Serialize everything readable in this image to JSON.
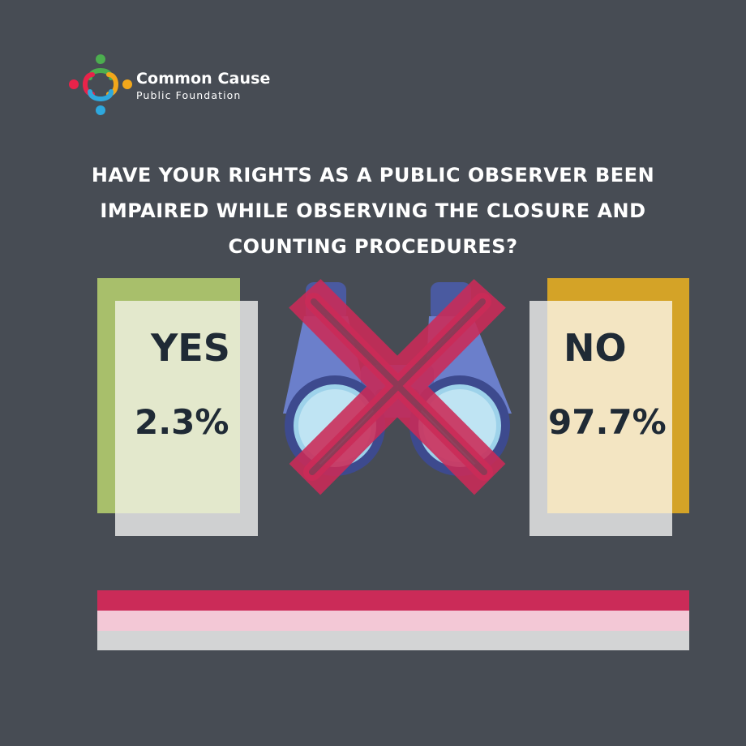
{
  "brand": {
    "name": "Common Cause",
    "subtitle": "Public Foundation",
    "logo_colors": [
      "#e8234a",
      "#4cae4f",
      "#f2a71b",
      "#2ea8de"
    ]
  },
  "question": "HAVE YOUR RIGHTS AS A PUBLIC OBSERVER BEEN IMPAIRED WHILE OBSERVING THE CLOSURE AND COUNTING PROCEDURES?",
  "answers": {
    "yes": {
      "label": "YES",
      "value_text": "2.3%",
      "percent": 2.3,
      "color": "#a8bf6b"
    },
    "no": {
      "label": "NO",
      "value_text": "97.7%",
      "percent": 97.7,
      "color": "#d4a327"
    }
  },
  "illustration": {
    "icon": "crossed-out-binoculars-icon"
  },
  "colors": {
    "background": "#474c54",
    "text": "#ffffff",
    "card_text": "#1f2a35",
    "cross": "#cb2b58",
    "stripes": [
      "#cb2b58",
      "#f3c8d6",
      "#d3d4d5"
    ]
  }
}
